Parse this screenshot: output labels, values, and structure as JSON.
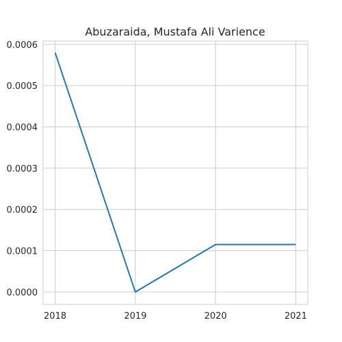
{
  "chart_data": {
    "type": "line",
    "title": "Abuzaraida, Mustafa Ali Varience",
    "xlabel": "",
    "ylabel": "",
    "x": [
      2018,
      2019,
      2020,
      2021
    ],
    "x_tick_labels": [
      "2018",
      "2019",
      "2020",
      "2021"
    ],
    "y_ticks": [
      0.0,
      0.0001,
      0.0002,
      0.0003,
      0.0004,
      0.0005,
      0.0006
    ],
    "y_tick_labels": [
      "0.0000",
      "0.0001",
      "0.0002",
      "0.0003",
      "0.0004",
      "0.0005",
      "0.0006"
    ],
    "xlim": [
      2017.85,
      2021.15
    ],
    "ylim": [
      -3e-05,
      0.000608
    ],
    "grid": true,
    "series": [
      {
        "values": [
          0.00058,
          0.0,
          0.000115,
          0.000115
        ],
        "color": "#1f77b4"
      }
    ]
  }
}
